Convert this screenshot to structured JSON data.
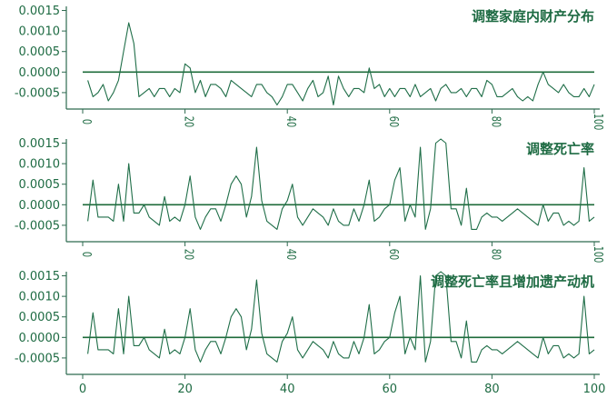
{
  "chart_data": [
    {
      "type": "line",
      "title": "调整家庭内财产分布",
      "ylim": [
        -0.0009,
        0.0016
      ],
      "yticks": [
        "0.0015",
        "0.0010",
        "0.0005",
        "0.0000",
        "-0.0005"
      ],
      "xlim": [
        0,
        100
      ],
      "xticks": [
        "0",
        "20",
        "40",
        "60",
        "80",
        "100"
      ],
      "x": [
        1,
        2,
        3,
        4,
        5,
        6,
        7,
        8,
        9,
        10,
        11,
        12,
        13,
        14,
        15,
        16,
        17,
        18,
        19,
        20,
        21,
        22,
        23,
        24,
        25,
        26,
        27,
        28,
        29,
        30,
        31,
        32,
        33,
        34,
        35,
        36,
        37,
        38,
        39,
        40,
        41,
        42,
        43,
        44,
        45,
        46,
        47,
        48,
        49,
        50,
        51,
        52,
        53,
        54,
        55,
        56,
        57,
        58,
        59,
        60,
        61,
        62,
        63,
        64,
        65,
        66,
        67,
        68,
        69,
        70,
        71,
        72,
        73,
        74,
        75,
        76,
        77,
        78,
        79,
        80,
        81,
        82,
        83,
        84,
        85,
        86,
        87,
        88,
        89,
        90,
        91,
        92,
        93,
        94,
        95,
        96,
        97,
        98,
        99,
        100
      ],
      "series": [
        {
          "values": [
            -0.0002,
            -0.0006,
            -0.0005,
            -0.0003,
            -0.0007,
            -0.0005,
            -0.0002,
            0.0005,
            0.0012,
            0.0007,
            -0.0006,
            -0.0005,
            -0.0004,
            -0.0006,
            -0.0004,
            -0.0004,
            -0.0006,
            -0.0004,
            -0.0005,
            0.0002,
            0.0001,
            -0.0005,
            -0.0002,
            -0.0006,
            -0.0003,
            -0.0003,
            -0.0004,
            -0.0006,
            -0.0002,
            -0.0003,
            -0.0004,
            -0.0005,
            -0.0006,
            -0.0003,
            -0.0003,
            -0.0005,
            -0.0006,
            -0.0008,
            -0.0006,
            -0.0003,
            -0.0003,
            -0.0005,
            -0.0007,
            -0.0004,
            -0.0002,
            -0.0006,
            -0.0005,
            -0.0001,
            -0.0008,
            -0.0001,
            -0.0004,
            -0.0006,
            -0.0004,
            -0.0004,
            -0.0005,
            0.0001,
            -0.0004,
            -0.0003,
            -0.0006,
            -0.0004,
            -0.0006,
            -0.0004,
            -0.0004,
            -0.0006,
            -0.0003,
            -0.0006,
            -0.0005,
            -0.0004,
            -0.0007,
            -0.0004,
            -0.0003,
            -0.0005,
            -0.0005,
            -0.0004,
            -0.0006,
            -0.0004,
            -0.0004,
            -0.0006,
            -0.0002,
            -0.0003,
            -0.0006,
            -0.0006,
            -0.0005,
            -0.0004,
            -0.0006,
            -0.0007,
            -0.0006,
            -0.0007,
            -0.0003,
            0.0,
            -0.0003,
            -0.0004,
            -0.0005,
            -0.0003,
            -0.0005,
            -0.0006,
            -0.0006,
            -0.0004,
            -0.0006,
            -0.0003
          ]
        }
      ]
    },
    {
      "type": "line",
      "title": "调整死亡率",
      "ylim": [
        -0.0009,
        0.0016
      ],
      "yticks": [
        "0.0015",
        "0.0010",
        "0.0005",
        "0.0000",
        "-0.0005"
      ],
      "xlim": [
        0,
        100
      ],
      "xticks": [
        "0",
        "20",
        "40",
        "60",
        "80",
        "100"
      ],
      "series": [
        {
          "values": [
            -0.0004,
            0.0006,
            -0.0003,
            -0.0003,
            -0.0003,
            -0.0004,
            0.0005,
            -0.0004,
            0.001,
            -0.0002,
            -0.0002,
            0.0,
            -0.0003,
            -0.0004,
            -0.0005,
            0.0002,
            -0.0004,
            -0.0003,
            -0.0004,
            0.0,
            0.0007,
            -0.0003,
            -0.0006,
            -0.0003,
            -0.0001,
            -0.0001,
            -0.0004,
            0.0,
            0.0005,
            0.0007,
            0.0005,
            -0.0003,
            0.0002,
            0.0014,
            0.0001,
            -0.0004,
            -0.0005,
            -0.0006,
            -0.0001,
            0.0001,
            0.0005,
            -0.0003,
            -0.0005,
            -0.0003,
            -0.0001,
            -0.0002,
            -0.0003,
            -0.0005,
            -0.0001,
            -0.0004,
            -0.0005,
            -0.0005,
            -0.0001,
            -0.0004,
            0.0,
            0.0006,
            -0.0004,
            -0.0003,
            -0.0001,
            0.0,
            0.0006,
            0.0009,
            -0.0004,
            0.0,
            -0.0003,
            0.0014,
            -0.0006,
            -0.0001,
            0.0015,
            0.0016,
            0.0015,
            -0.0001,
            -0.0001,
            -0.0005,
            0.0004,
            -0.0006,
            -0.0006,
            -0.0003,
            -0.0002,
            -0.0003,
            -0.0003,
            -0.0004,
            -0.0003,
            -0.0002,
            -0.0001,
            -0.0002,
            -0.0003,
            -0.0004,
            -0.0005,
            0.0,
            -0.0004,
            -0.0002,
            -0.0002,
            -0.0005,
            -0.0004,
            -0.0005,
            -0.0004,
            0.0009,
            -0.0004,
            -0.0003
          ]
        }
      ]
    },
    {
      "type": "line",
      "title": "调整死亡率且增加遗产动机",
      "ylim": [
        -0.0009,
        0.0016
      ],
      "yticks": [
        "0.0015",
        "0.0010",
        "0.0005",
        "0.0000",
        "-0.0005"
      ],
      "xlim": [
        0,
        100
      ],
      "xticks": [
        "0",
        "20",
        "40",
        "60",
        "80",
        "100"
      ],
      "series": [
        {
          "values": [
            -0.0004,
            0.0006,
            -0.0003,
            -0.0003,
            -0.0003,
            -0.0004,
            0.0007,
            -0.0004,
            0.001,
            -0.0002,
            -0.0002,
            0.0,
            -0.0003,
            -0.0004,
            -0.0005,
            0.0002,
            -0.0004,
            -0.0003,
            -0.0004,
            0.0,
            0.0007,
            -0.0003,
            -0.0006,
            -0.0003,
            -0.0001,
            -0.0001,
            -0.0004,
            0.0,
            0.0005,
            0.0007,
            0.0005,
            -0.0003,
            0.0002,
            0.0014,
            0.0001,
            -0.0004,
            -0.0005,
            -0.0006,
            -0.0001,
            0.0001,
            0.0005,
            -0.0003,
            -0.0005,
            -0.0003,
            -0.0001,
            -0.0002,
            -0.0003,
            -0.0005,
            -0.0001,
            -0.0004,
            -0.0005,
            -0.0005,
            -0.0001,
            -0.0004,
            0.0,
            0.0008,
            -0.0004,
            -0.0003,
            -0.0001,
            0.0,
            0.0006,
            0.001,
            -0.0004,
            0.0,
            -0.0003,
            0.0015,
            -0.0006,
            -0.0001,
            0.0015,
            0.0016,
            0.0015,
            -0.0001,
            -0.0001,
            -0.0005,
            0.0004,
            -0.0006,
            -0.0006,
            -0.0003,
            -0.0002,
            -0.0003,
            -0.0003,
            -0.0004,
            -0.0003,
            -0.0002,
            -0.0001,
            -0.0002,
            -0.0003,
            -0.0004,
            -0.0005,
            0.0,
            -0.0004,
            -0.0002,
            -0.0002,
            -0.0005,
            -0.0004,
            -0.0005,
            -0.0004,
            0.001,
            -0.0004,
            -0.0003
          ]
        }
      ]
    }
  ]
}
